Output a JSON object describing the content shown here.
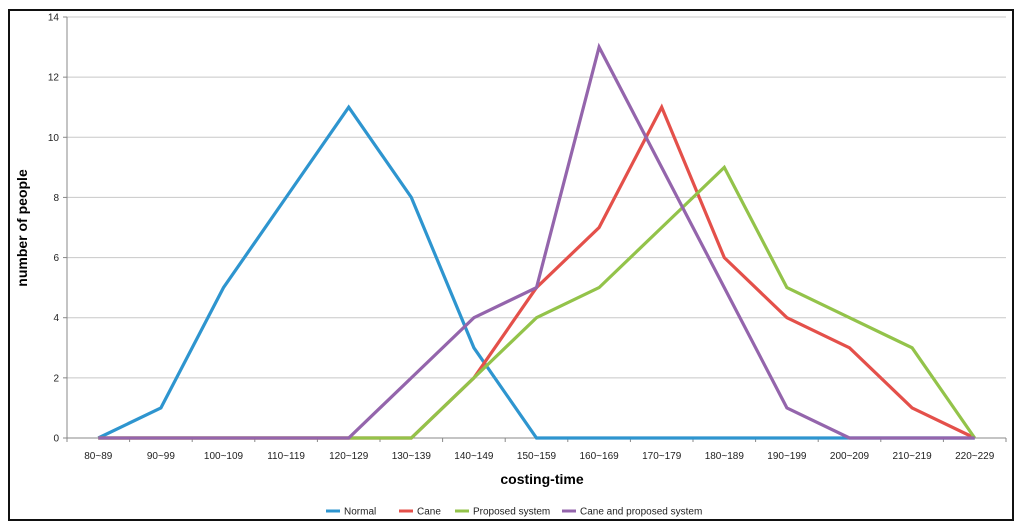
{
  "chart_data": {
    "type": "line",
    "title": "",
    "xlabel": "costing-time",
    "ylabel": "number of people",
    "ylim": [
      0,
      14
    ],
    "yticks": [
      0,
      2,
      4,
      6,
      8,
      10,
      12,
      14
    ],
    "grid": true,
    "legend_position": "bottom",
    "categories": [
      "80~89",
      "90~99",
      "100~109",
      "110~119",
      "120~129",
      "130~139",
      "140~149",
      "150~159",
      "160~169",
      "170~179",
      "180~189",
      "190~199",
      "200~209",
      "210~219",
      "220~229"
    ],
    "series": [
      {
        "name": "Normal",
        "color": "#2e95cf",
        "values": [
          0,
          1,
          5,
          8,
          11,
          8,
          3,
          0,
          0,
          0,
          0,
          0,
          0,
          0,
          0
        ]
      },
      {
        "name": "Cane",
        "color": "#e4504a",
        "values": [
          0,
          0,
          0,
          0,
          0,
          0,
          2,
          5,
          7,
          11,
          6,
          4,
          3,
          1,
          0
        ]
      },
      {
        "name": "Proposed system",
        "color": "#93c34a",
        "values": [
          0,
          0,
          0,
          0,
          0,
          0,
          2,
          4,
          5,
          7,
          9,
          5,
          4,
          3,
          0
        ]
      },
      {
        "name": "Cane and proposed system",
        "color": "#9465ac",
        "values": [
          0,
          0,
          0,
          0,
          0,
          2,
          4,
          5,
          13,
          9,
          5,
          1,
          0,
          0,
          0
        ]
      }
    ]
  }
}
